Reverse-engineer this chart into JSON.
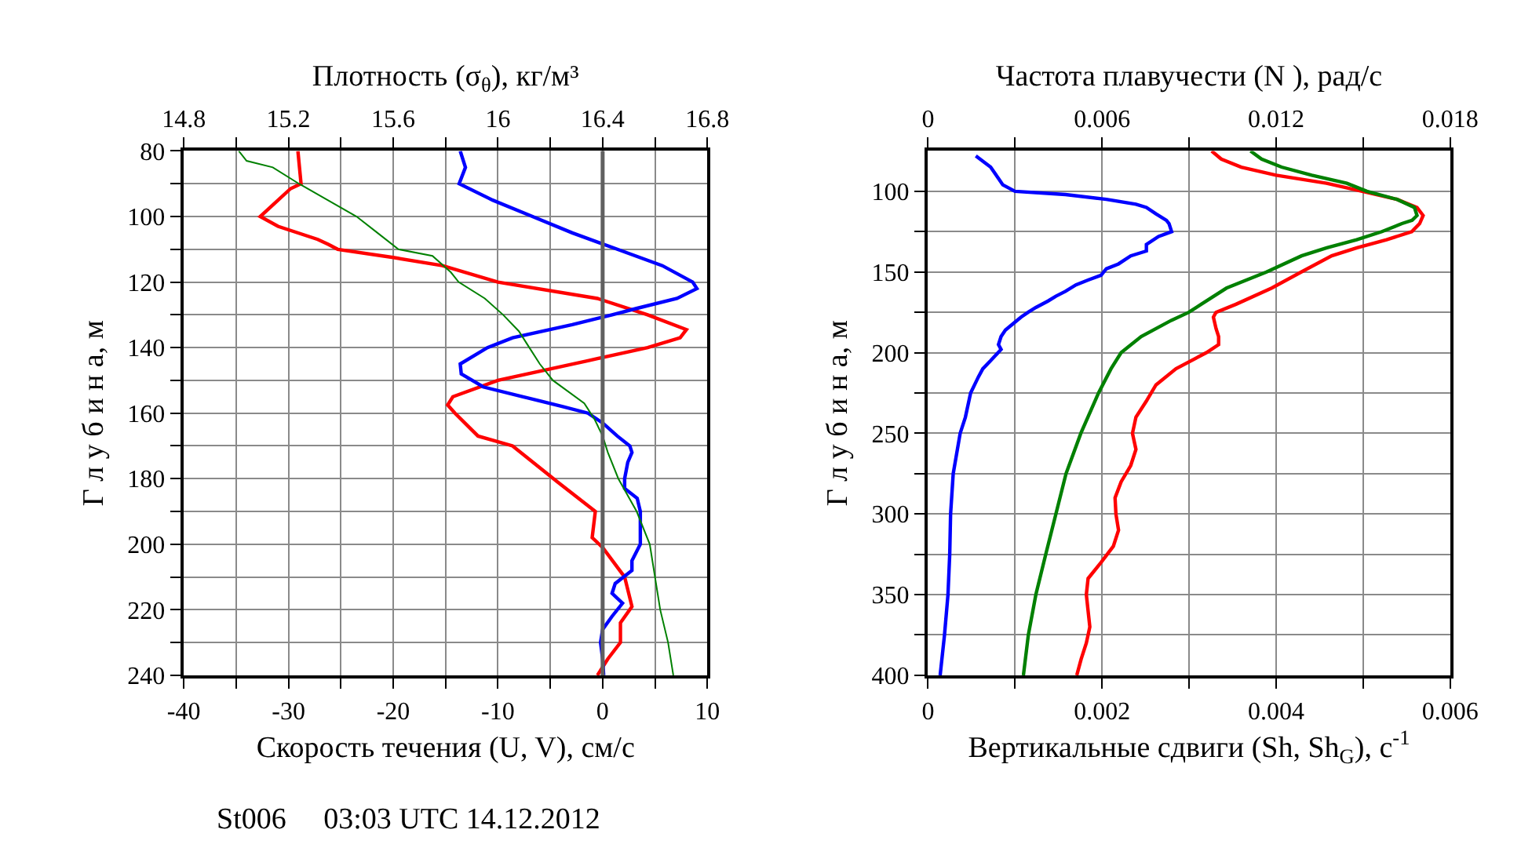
{
  "chart_data": [
    {
      "type": "line",
      "xlabel": "Скорость течения (U, V), см/с",
      "x2label": "Плотность (σ$_{θ}$), кг/м³",
      "ylabel": "Г л у б и н а, м",
      "xlim": [
        -40,
        10
      ],
      "xticks": [
        -40,
        {
          "value": -35,
          "label": null
        },
        -30,
        {
          "value": -25,
          "label": null
        },
        -20,
        {
          "value": -15,
          "label": null
        },
        -10,
        {
          "value": -5,
          "label": null
        },
        0,
        {
          "value": 5,
          "label": null
        },
        10
      ],
      "x2lim": [
        14.8,
        16.8
      ],
      "x2ticks": [
        14.8,
        {
          "value": 15.0,
          "label": null
        },
        15.2,
        {
          "value": 15.4,
          "label": null
        },
        15.6,
        {
          "value": 15.8,
          "label": null
        },
        16,
        {
          "value": 16.2,
          "label": null
        },
        16.4,
        {
          "value": 16.6,
          "label": null
        },
        16.8
      ],
      "ylim": [
        240,
        80
      ],
      "yticks": [
        80,
        {
          "value": 90,
          "label": null
        },
        100,
        {
          "value": 110,
          "label": null
        },
        120,
        {
          "value": 130,
          "label": null
        },
        140,
        {
          "value": 150,
          "label": null
        },
        160,
        {
          "value": 170,
          "label": null
        },
        180,
        {
          "value": 190,
          "label": null
        },
        200,
        {
          "value": 210,
          "label": null
        },
        220,
        {
          "value": 230,
          "label": null
        },
        240
      ],
      "grid": true,
      "ref_lines": [
        {
          "axis": "x",
          "value": 0,
          "color": "#606060"
        }
      ],
      "annotations": [
        "St006     03:03 UTC 14.12.2012"
      ],
      "series": [
        {
          "color": "#ff0000",
          "x": [
            -29.1,
            -28.8,
            -29.8,
            -32.7,
            -31.0,
            -27.2,
            -26.2,
            -25.3,
            -20.0,
            -15.3,
            -10.0,
            -0.5,
            4.3,
            8.0,
            7.4,
            4.3,
            -1.4,
            -10.0,
            -14.3,
            -14.8,
            -14.1,
            -11.9,
            -8.6,
            -4.3,
            -0.7,
            -1.0,
            0,
            2.1,
            2.8,
            1.7,
            1.7,
            0.5,
            -0.5
          ],
          "values": [
            80,
            90,
            91.5,
            100,
            103,
            107,
            108.5,
            110,
            112.5,
            115,
            120,
            125,
            130,
            134.5,
            137,
            140,
            144,
            150,
            155,
            157.5,
            160,
            167,
            170,
            181,
            190,
            198,
            201,
            210,
            219,
            224,
            230,
            235,
            240
          ]
        },
        {
          "color": "#0000ff",
          "x": [
            -13.6,
            -13.1,
            -13.7,
            -10.5,
            -6.7,
            -2.9,
            1.4,
            5.7,
            8.6,
            9.0,
            7.1,
            3.3,
            0.9,
            -2.9,
            -8.6,
            -11.0,
            -13.6,
            -13.5,
            -11.4,
            -7.6,
            -3.8,
            -1.4,
            0,
            1.4,
            2.6,
            2.8,
            2.4,
            2.1,
            2.1,
            3.3,
            3.6,
            3.6,
            2.8,
            2.8,
            1.2,
            0.9,
            1.9,
            0.9,
            0,
            -0.2,
            0,
            0.1
          ],
          "values": [
            80,
            85,
            90,
            95,
            100,
            105,
            110,
            115,
            120,
            122,
            125,
            128,
            130,
            133,
            137,
            140,
            145,
            148,
            152,
            155,
            158,
            160,
            163,
            167,
            170,
            172,
            175,
            180,
            183,
            186,
            190,
            200,
            205,
            208,
            212,
            215,
            218,
            222,
            226,
            230,
            235,
            240
          ]
        },
        {
          "color": "#008000",
          "axis": "x2",
          "x": [
            15.01,
            15.04,
            15.14,
            15.24,
            15.35,
            15.46,
            15.54,
            15.62,
            15.75,
            15.82,
            15.85,
            15.95,
            16.02,
            16.08,
            16.12,
            16.16,
            16.21,
            16.33,
            16.37,
            16.4,
            16.42,
            16.46,
            16.53,
            16.58,
            16.6,
            16.62,
            16.65,
            16.67
          ],
          "values": [
            80,
            83,
            85,
            90,
            95,
            100,
            105,
            110,
            112,
            117,
            120,
            125,
            130,
            135,
            140,
            145,
            150,
            157,
            162,
            167,
            172,
            180,
            190,
            200,
            210,
            220,
            230,
            240
          ]
        }
      ]
    },
    {
      "type": "line",
      "xlabel": "Вертикальные сдвиги (Sh, Sh$_{G}$), с$^{-1}$",
      "x2label": "Частота плавучести (N ), рад/с",
      "ylabel": "Г л у б и н а, м",
      "xlim": [
        0,
        0.006
      ],
      "xticks": [
        0,
        {
          "value": 0.001,
          "label": null
        },
        0.002,
        {
          "value": 0.003,
          "label": null
        },
        0.004,
        {
          "value": 0.005,
          "label": null
        },
        0.006
      ],
      "x2lim": [
        0,
        0.018
      ],
      "x2ticks": [
        0,
        {
          "value": 0.003,
          "label": null
        },
        0.006,
        {
          "value": 0.009,
          "label": null
        },
        0.012,
        {
          "value": 0.015,
          "label": null
        },
        0.018
      ],
      "ylim": [
        400,
        75
      ],
      "yticks": [
        100,
        {
          "value": 125,
          "label": null
        },
        150,
        {
          "value": 175,
          "label": null
        },
        200,
        {
          "value": 225,
          "label": null
        },
        250,
        {
          "value": 275,
          "label": null
        },
        300,
        {
          "value": 325,
          "label": null
        },
        350,
        {
          "value": 375,
          "label": null
        },
        400
      ],
      "grid": true,
      "series": [
        {
          "color": "#0000ff",
          "x": [
            0.00055,
            0.00072,
            0.00081,
            0.00086,
            0.001,
            0.00158,
            0.00205,
            0.00239,
            0.00251,
            0.00262,
            0.00274,
            0.00277,
            0.0028,
            0.00265,
            0.00251,
            0.00251,
            0.00233,
            0.00219,
            0.00205,
            0.00202,
            0.00199,
            0.00184,
            0.0017,
            0.00158,
            0.00147,
            0.00138,
            0.00124,
            0.00115,
            0.00107,
            0.00098,
            0.00089,
            0.00084,
            0.00081,
            0.00084,
            0.00072,
            0.00063,
            0.00058,
            0.00049,
            0.00043,
            0.00037,
            0.00029,
            0.00026,
            0.00025,
            0.00023,
            0.00019,
            0.00014
          ],
          "values": [
            78,
            85,
            92,
            96,
            100,
            102,
            105,
            108,
            110,
            114,
            118,
            120,
            125,
            128,
            133,
            137,
            140,
            145,
            148,
            150,
            152,
            155,
            158,
            162,
            165,
            168,
            172,
            175,
            178,
            182,
            186,
            190,
            195,
            198,
            205,
            210,
            215,
            225,
            240,
            250,
            275,
            300,
            325,
            350,
            375,
            400
          ]
        },
        {
          "color": "#008000",
          "axis": "x2",
          "x": [
            0.01112,
            0.0115,
            0.01219,
            0.01323,
            0.01444,
            0.01513,
            0.01617,
            0.01677,
            0.01686,
            0.01669,
            0.01634,
            0.01565,
            0.01478,
            0.01375,
            0.01288,
            0.01167,
            0.01029,
            0.00942,
            0.00899,
            0.00839,
            0.00735,
            0.00666,
            0.00631,
            0.00588,
            0.00527,
            0.00476,
            0.00441,
            0.00406,
            0.00372,
            0.00346,
            0.00329
          ],
          "values": [
            75,
            80,
            85,
            90,
            95,
            100,
            105,
            110,
            115,
            118,
            120,
            125,
            130,
            135,
            140,
            150,
            160,
            170,
            175,
            180,
            190,
            200,
            210,
            225,
            250,
            275,
            300,
            325,
            350,
            375,
            400
          ]
        },
        {
          "color": "#ff0000",
          "x": [
            0.00326,
            0.00337,
            0.0036,
            0.004,
            0.00458,
            0.00499,
            0.00539,
            0.00562,
            0.00569,
            0.00565,
            0.00556,
            0.00527,
            0.00493,
            0.00464,
            0.00429,
            0.00395,
            0.00354,
            0.00331,
            0.00328,
            0.00331,
            0.00334,
            0.00334,
            0.0032,
            0.00285,
            0.00262,
            0.00251,
            0.00239,
            0.00235,
            0.00239,
            0.00233,
            0.00222,
            0.00215,
            0.00216,
            0.00219,
            0.00213,
            0.00199,
            0.00184,
            0.00182,
            0.00184,
            0.00186,
            0.00182,
            0.00176,
            0.00171
          ],
          "values": [
            75,
            80,
            85,
            90,
            95,
            100,
            105,
            110,
            115,
            120,
            125,
            130,
            135,
            140,
            150,
            160,
            170,
            175,
            178,
            185,
            190,
            195,
            200,
            210,
            220,
            230,
            240,
            250,
            260,
            270,
            280,
            290,
            300,
            310,
            320,
            330,
            340,
            350,
            360,
            370,
            380,
            390,
            400
          ]
        }
      ]
    }
  ]
}
